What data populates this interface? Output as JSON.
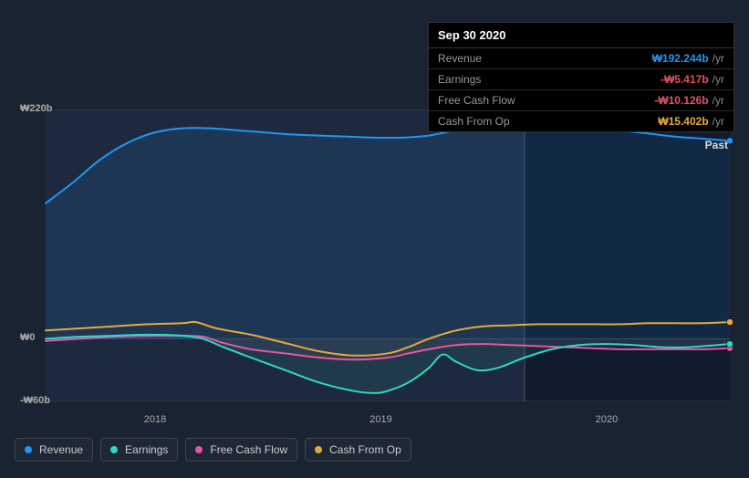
{
  "tooltip": {
    "date": "Sep 30 2020",
    "rows": [
      {
        "label": "Revenue",
        "value": "₩192.244b",
        "suffix": "/yr",
        "color": "#2196f3"
      },
      {
        "label": "Earnings",
        "value": "-₩5.417b",
        "suffix": "/yr",
        "color": "#e05263"
      },
      {
        "label": "Free Cash Flow",
        "value": "-₩10.126b",
        "suffix": "/yr",
        "color": "#e05263"
      },
      {
        "label": "Cash From Op",
        "value": "₩15.402b",
        "suffix": "/yr",
        "color": "#e6a93c"
      }
    ]
  },
  "chart": {
    "type": "area-line",
    "background": "#1a2332",
    "plot_background_left": "rgba(30,45,70,0.6)",
    "plot_background_right": "rgba(15,25,45,0.8)",
    "ylim": [
      -60,
      220
    ],
    "yticks": [
      {
        "v": 220,
        "label": "₩220b"
      },
      {
        "v": 0,
        "label": "₩0"
      },
      {
        "v": -60,
        "label": "-₩60b"
      }
    ],
    "xticks": [
      {
        "t": 0.16,
        "label": "2018"
      },
      {
        "t": 0.49,
        "label": "2019"
      },
      {
        "t": 0.82,
        "label": "2020"
      }
    ],
    "vline_at": 0.7,
    "past_label": "Past",
    "end_markers": true,
    "series": [
      {
        "name": "Revenue",
        "color": "#2196f3",
        "fill_opacity": 0.12,
        "data": [
          [
            0.0,
            130
          ],
          [
            0.04,
            150
          ],
          [
            0.08,
            172
          ],
          [
            0.12,
            188
          ],
          [
            0.16,
            198
          ],
          [
            0.2,
            202
          ],
          [
            0.24,
            202
          ],
          [
            0.28,
            200
          ],
          [
            0.32,
            198
          ],
          [
            0.36,
            196
          ],
          [
            0.4,
            195
          ],
          [
            0.44,
            194
          ],
          [
            0.48,
            193
          ],
          [
            0.52,
            193
          ],
          [
            0.56,
            195
          ],
          [
            0.6,
            200
          ],
          [
            0.64,
            204
          ],
          [
            0.68,
            207
          ],
          [
            0.72,
            208
          ],
          [
            0.76,
            207
          ],
          [
            0.8,
            204
          ],
          [
            0.84,
            200
          ],
          [
            0.88,
            197
          ],
          [
            0.92,
            194
          ],
          [
            0.96,
            192
          ],
          [
            1.0,
            190
          ]
        ]
      },
      {
        "name": "Cash From Op",
        "color": "#e6a93c",
        "fill_opacity": 0.0,
        "data": [
          [
            0.0,
            8
          ],
          [
            0.05,
            10
          ],
          [
            0.1,
            12
          ],
          [
            0.15,
            14
          ],
          [
            0.2,
            15
          ],
          [
            0.22,
            16
          ],
          [
            0.25,
            10
          ],
          [
            0.3,
            4
          ],
          [
            0.35,
            -4
          ],
          [
            0.4,
            -12
          ],
          [
            0.45,
            -16
          ],
          [
            0.5,
            -14
          ],
          [
            0.53,
            -8
          ],
          [
            0.56,
            0
          ],
          [
            0.6,
            8
          ],
          [
            0.64,
            12
          ],
          [
            0.68,
            13
          ],
          [
            0.72,
            14
          ],
          [
            0.76,
            14
          ],
          [
            0.8,
            14
          ],
          [
            0.84,
            14
          ],
          [
            0.88,
            15
          ],
          [
            0.92,
            15
          ],
          [
            0.96,
            15
          ],
          [
            1.0,
            16
          ]
        ]
      },
      {
        "name": "Free Cash Flow",
        "color": "#e754a8",
        "fill_opacity": 0.08,
        "data": [
          [
            0.0,
            -2
          ],
          [
            0.05,
            0
          ],
          [
            0.1,
            2
          ],
          [
            0.15,
            3
          ],
          [
            0.2,
            3
          ],
          [
            0.23,
            2
          ],
          [
            0.26,
            -4
          ],
          [
            0.3,
            -10
          ],
          [
            0.35,
            -14
          ],
          [
            0.4,
            -18
          ],
          [
            0.45,
            -20
          ],
          [
            0.5,
            -18
          ],
          [
            0.53,
            -14
          ],
          [
            0.56,
            -10
          ],
          [
            0.6,
            -6
          ],
          [
            0.64,
            -5
          ],
          [
            0.68,
            -6
          ],
          [
            0.72,
            -7
          ],
          [
            0.76,
            -8
          ],
          [
            0.8,
            -9
          ],
          [
            0.84,
            -10
          ],
          [
            0.88,
            -10
          ],
          [
            0.92,
            -10
          ],
          [
            0.96,
            -10
          ],
          [
            1.0,
            -9
          ]
        ]
      },
      {
        "name": "Earnings",
        "color": "#2ed9c3",
        "fill_opacity": 0.1,
        "data": [
          [
            0.0,
            0
          ],
          [
            0.05,
            2
          ],
          [
            0.1,
            3
          ],
          [
            0.15,
            4
          ],
          [
            0.2,
            3
          ],
          [
            0.23,
            0
          ],
          [
            0.26,
            -8
          ],
          [
            0.3,
            -18
          ],
          [
            0.35,
            -30
          ],
          [
            0.4,
            -42
          ],
          [
            0.45,
            -50
          ],
          [
            0.48,
            -52
          ],
          [
            0.5,
            -50
          ],
          [
            0.53,
            -42
          ],
          [
            0.56,
            -28
          ],
          [
            0.58,
            -15
          ],
          [
            0.6,
            -22
          ],
          [
            0.63,
            -30
          ],
          [
            0.66,
            -28
          ],
          [
            0.7,
            -18
          ],
          [
            0.74,
            -10
          ],
          [
            0.78,
            -6
          ],
          [
            0.82,
            -5
          ],
          [
            0.86,
            -6
          ],
          [
            0.9,
            -8
          ],
          [
            0.94,
            -8
          ],
          [
            1.0,
            -5
          ]
        ]
      }
    ],
    "legend": [
      {
        "label": "Revenue",
        "color": "#2196f3"
      },
      {
        "label": "Earnings",
        "color": "#2ed9c3"
      },
      {
        "label": "Free Cash Flow",
        "color": "#e754a8"
      },
      {
        "label": "Cash From Op",
        "color": "#e6a93c"
      }
    ]
  }
}
